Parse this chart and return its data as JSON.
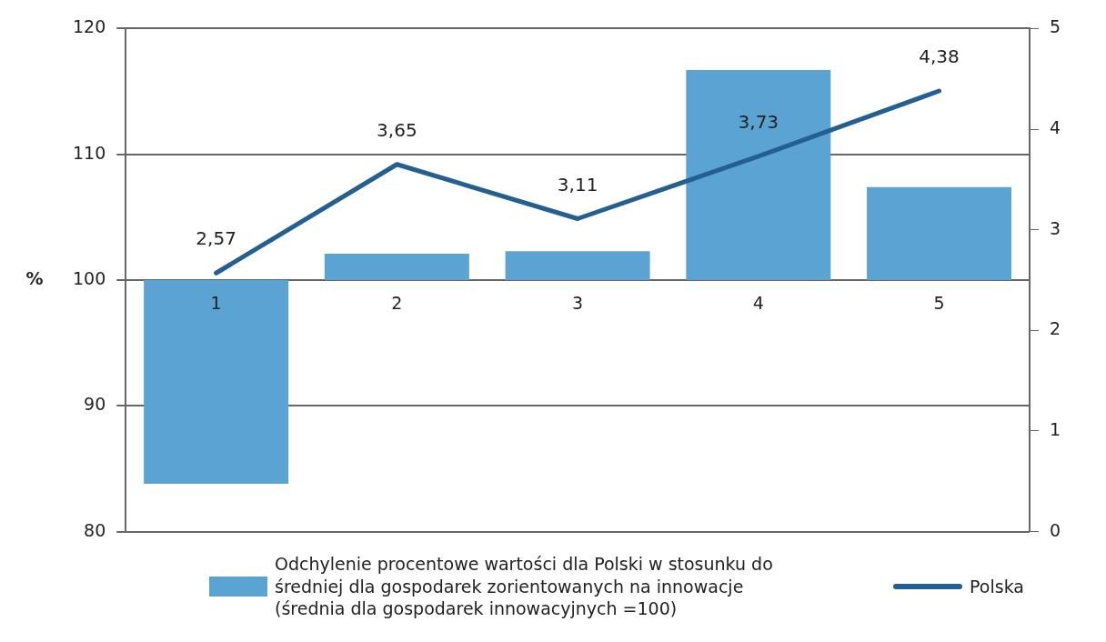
{
  "chart_data": {
    "type": "bar",
    "categories": [
      "1",
      "2",
      "3",
      "4",
      "5"
    ],
    "ylabel": "%",
    "legend": "bottom",
    "grid": "y",
    "ylim": [
      80,
      120
    ],
    "yticks": [
      80,
      90,
      100,
      110,
      120
    ],
    "y2lim": [
      0,
      5
    ],
    "y2ticks": [
      0,
      1,
      2,
      3,
      4,
      5
    ],
    "series": [
      {
        "name": "Odchylenie procentowe wartości dla Polski w stosunku do średniej dla gospodarek zorientowanych na innowacje (średnia dla gospodarek innowacyjnych =100)",
        "color": "#5ba3d3",
        "base": [
          100,
          100,
          100,
          100,
          100
        ],
        "values": [
          -16.2,
          2.1,
          2.3,
          16.7,
          7.4
        ]
      },
      {
        "type": "line",
        "name": "Polska",
        "axis": "y2",
        "color": "#245f91",
        "values": [
          2.57,
          3.65,
          3.11,
          3.73,
          4.38
        ],
        "value_labels": [
          "2,57",
          "3,65",
          "3,11",
          "3,73",
          "4,38"
        ]
      }
    ]
  }
}
